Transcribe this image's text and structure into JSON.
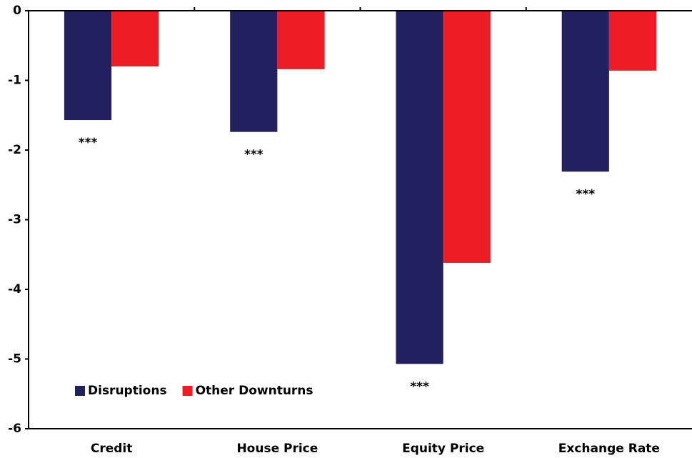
{
  "chart_data": {
    "type": "bar",
    "categories": [
      "Credit",
      "House Price",
      "Equity Price",
      "Exchange Rate"
    ],
    "series": [
      {
        "name": "Disruptions",
        "color": "#22205f",
        "values": [
          -1.57,
          -1.74,
          -5.07,
          -2.31
        ]
      },
      {
        "name": "Other Downturns",
        "color": "#ee1c25",
        "values": [
          -0.8,
          -0.84,
          -3.62,
          -0.86
        ]
      }
    ],
    "annotations": [
      "***",
      "***",
      "***",
      "***"
    ],
    "ylim": [
      -6,
      0
    ],
    "yticks": [
      0,
      -1,
      -2,
      -3,
      -4,
      -5,
      -6
    ],
    "legend": "lower left",
    "grid": false
  }
}
